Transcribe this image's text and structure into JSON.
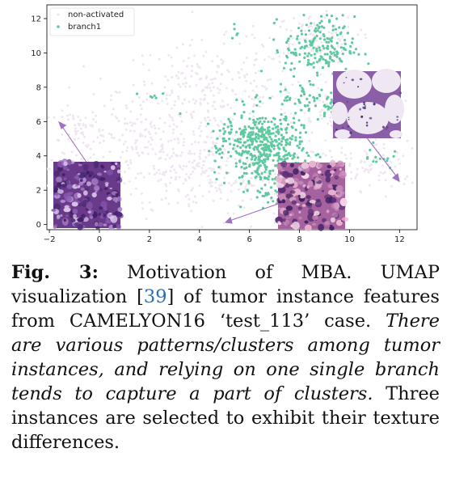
{
  "chart_data": {
    "type": "scatter",
    "title": "",
    "xlabel": "",
    "ylabel": "",
    "xlim": [
      -2.1,
      12.7
    ],
    "ylim": [
      -0.3,
      12.8
    ],
    "xticks": [
      -2,
      0,
      2,
      4,
      6,
      8,
      10,
      12
    ],
    "yticks": [
      0,
      2,
      4,
      6,
      8,
      10,
      12
    ],
    "legend_position": "top-left",
    "series": [
      {
        "name": "non-activated",
        "color": "#efe6f2",
        "clusters": [
          {
            "cx": 1.5,
            "cy": 4.5,
            "sx": 2.3,
            "sy": 1.6,
            "n": 260
          },
          {
            "cx": 4.5,
            "cy": 7.8,
            "sx": 1.8,
            "sy": 1.4,
            "n": 240
          },
          {
            "cx": 4.0,
            "cy": 3.0,
            "sx": 1.6,
            "sy": 1.3,
            "n": 170
          },
          {
            "cx": 8.5,
            "cy": 10.8,
            "sx": 0.9,
            "sy": 0.7,
            "n": 110
          },
          {
            "cx": 9.8,
            "cy": 6.0,
            "sx": 1.1,
            "sy": 1.2,
            "n": 120
          },
          {
            "cx": 11.0,
            "cy": 3.2,
            "sx": 0.9,
            "sy": 0.6,
            "n": 60
          },
          {
            "cx": 6.8,
            "cy": 2.5,
            "sx": 1.4,
            "sy": 1.0,
            "n": 90
          },
          {
            "cx": -0.8,
            "cy": 5.6,
            "sx": 0.5,
            "sy": 0.5,
            "n": 40
          }
        ]
      },
      {
        "name": "branch1",
        "color": "#5fc9a0",
        "clusters": [
          {
            "cx": 6.6,
            "cy": 4.4,
            "sx": 0.75,
            "sy": 1.15,
            "n": 420
          },
          {
            "cx": 8.8,
            "cy": 10.3,
            "sx": 0.7,
            "sy": 0.9,
            "n": 190
          },
          {
            "cx": 9.5,
            "cy": 7.0,
            "sx": 0.45,
            "sy": 0.4,
            "n": 60
          },
          {
            "cx": 8.3,
            "cy": 7.2,
            "sx": 0.55,
            "sy": 0.5,
            "n": 40
          },
          {
            "cx": 5.6,
            "cy": 5.2,
            "sx": 0.7,
            "sy": 0.6,
            "n": 60
          },
          {
            "cx": 11.1,
            "cy": 3.9,
            "sx": 0.3,
            "sy": 0.35,
            "n": 14
          },
          {
            "cx": 2.2,
            "cy": 7.5,
            "sx": 0.3,
            "sy": 0.3,
            "n": 6
          },
          {
            "cx": 5.5,
            "cy": 11.4,
            "sx": 0.3,
            "sy": 0.2,
            "n": 5
          },
          {
            "cx": 7.0,
            "cy": 2.0,
            "sx": 0.6,
            "sy": 0.5,
            "n": 20
          }
        ]
      }
    ],
    "annotations": [
      {
        "name": "inset-left",
        "color": "purple-dense-nuclei",
        "arrow_to": [
          -1.5,
          5.9
        ]
      },
      {
        "name": "inset-middle",
        "color": "pink-purple-tissue",
        "arrow_to": [
          5.1,
          0.3
        ]
      },
      {
        "name": "inset-right",
        "color": "adipose-tissue",
        "arrow_to": [
          12.2,
          2.7
        ]
      }
    ]
  },
  "caption": {
    "label": "Fig. 3:",
    "text1": " Motivation of MBA. UMAP visualization [",
    "ref": "39",
    "text2": "] of tumor instance features from CAMELYON16 ‘test_113’ case. ",
    "italic": "There are various patterns/clusters among tumor instances, and relying on one single branch tends to capture a part of clusters.",
    "text3": " Three instances are selected to exhibit their texture differences."
  }
}
